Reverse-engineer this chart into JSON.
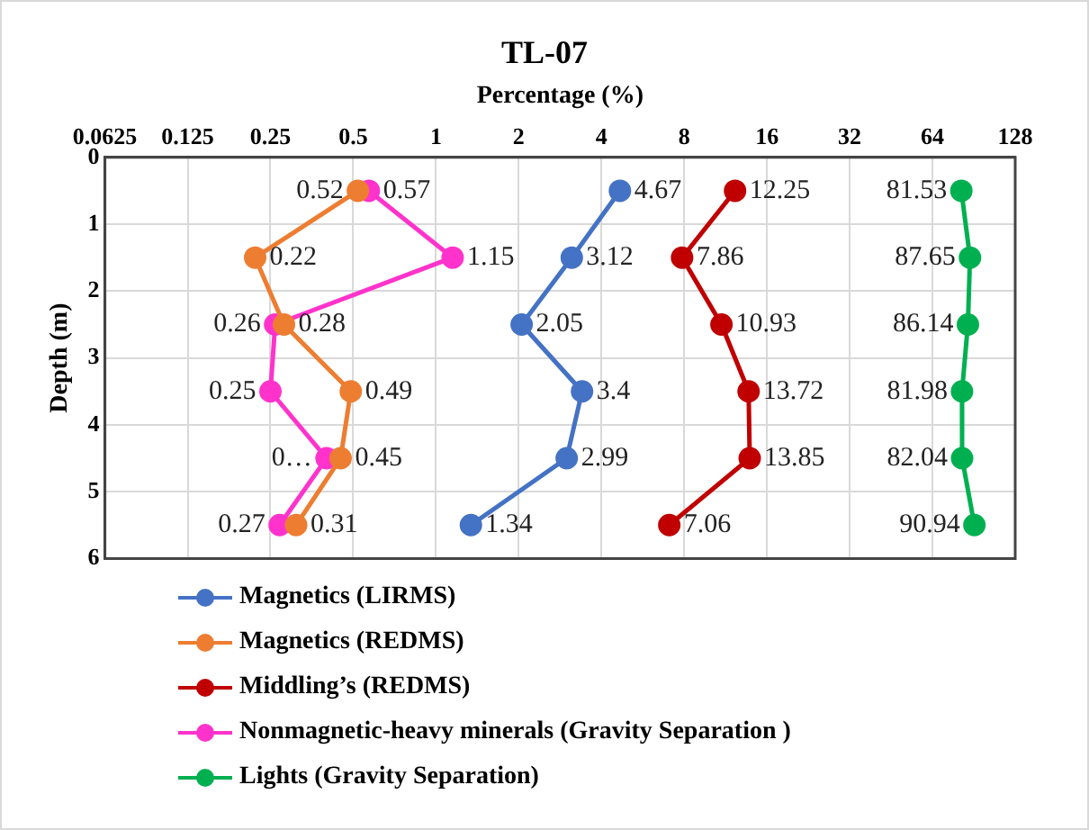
{
  "chart_data": {
    "type": "line",
    "orientation": "horizontal",
    "title": "TL-07",
    "xlabel": "Percentage (%)",
    "ylabel": "Depth (m)",
    "log": "x",
    "xlim": [
      0.0625,
      128
    ],
    "xticks": [
      0.0625,
      0.125,
      0.25,
      0.5,
      1,
      2,
      4,
      8,
      16,
      32,
      64,
      128
    ],
    "ylim": [
      6,
      0
    ],
    "yticks": [
      0,
      1,
      2,
      3,
      4,
      5,
      6
    ],
    "grid": true,
    "legend": "bottom",
    "marker": "circle",
    "line_style": "solid",
    "data_labels": true,
    "series": [
      {
        "name": "Magnetics (LIRMS)",
        "color": "#4472c4",
        "x": [
          0.5,
          1.5,
          2.5,
          3.5,
          4.5,
          5.5
        ],
        "values": [
          4.67,
          3.12,
          2.05,
          3.4,
          2.99,
          1.34
        ]
      },
      {
        "name": "Magnetics (REDMS)",
        "color": "#ed7d31",
        "x": [
          0.5,
          1.5,
          2.5,
          3.5,
          4.5,
          5.5
        ],
        "values": [
          0.52,
          0.22,
          0.28,
          0.49,
          0.45,
          0.31
        ]
      },
      {
        "name": "Middling’s (REDMS)",
        "color": "#c00000",
        "x": [
          0.5,
          1.5,
          2.5,
          3.5,
          4.5,
          5.5
        ],
        "values": [
          12.25,
          7.86,
          10.93,
          13.72,
          13.85,
          7.06
        ]
      },
      {
        "name": "Nonmagnetic-heavy minerals (Gravity Separation )",
        "color": "#ff33cc",
        "x": [
          0.5,
          1.5,
          2.5,
          3.5,
          4.5,
          5.5
        ],
        "values": [
          0.57,
          1.15,
          0.26,
          0.25,
          0.4,
          0.27
        ],
        "value_labels": [
          "0.57",
          "1.15",
          "0.26",
          "0.25",
          "0…",
          "0.27"
        ]
      },
      {
        "name": "Lights (Gravity Separation)",
        "color": "#00b050",
        "x": [
          0.5,
          1.5,
          2.5,
          3.5,
          4.5,
          5.5
        ],
        "values": [
          81.53,
          87.65,
          86.14,
          81.98,
          82.04,
          90.94
        ]
      }
    ]
  }
}
